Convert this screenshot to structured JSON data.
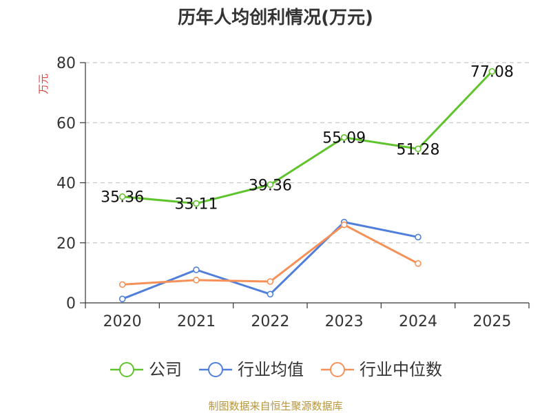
{
  "chart_data": {
    "type": "line",
    "title": "历年人均创利情况(万元)",
    "ylabel": "万元",
    "xlabel": "",
    "categories": [
      "2020",
      "2021",
      "2022",
      "2023",
      "2024",
      "2025"
    ],
    "ylim": [
      0,
      80
    ],
    "yticks": [
      0,
      20,
      40,
      60,
      80
    ],
    "grid": true,
    "legend_position": "bottom",
    "series": [
      {
        "name": "公司",
        "color": "#5fc42b",
        "values": [
          35.36,
          33.11,
          39.36,
          55.09,
          51.28,
          77.08
        ],
        "labels": [
          "35.36",
          "33.11",
          "39.36",
          "55.09",
          "51.28",
          "77.08"
        ]
      },
      {
        "name": "行业均值",
        "color": "#4f7fdb",
        "values": [
          1.3,
          11.0,
          2.9,
          26.9,
          21.9,
          null
        ]
      },
      {
        "name": "行业中位数",
        "color": "#f59158",
        "values": [
          6.1,
          7.6,
          7.1,
          26.0,
          13.1,
          null
        ]
      }
    ],
    "source": "制图数据来自恒生聚源数据库"
  }
}
